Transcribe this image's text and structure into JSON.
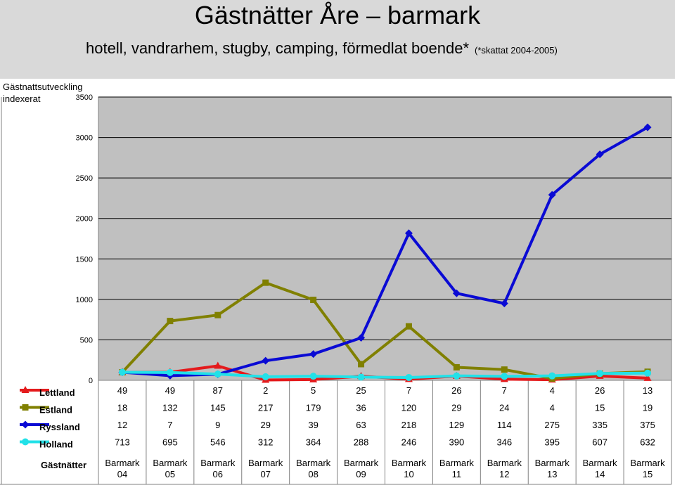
{
  "header": {
    "title": "Gästnätter Åre – barmark",
    "subtitle": "hotell, vandrarhem, stugby, camping, förmedlat boende*",
    "note": "(*skattat 2004-2005)"
  },
  "chart_data": {
    "type": "line",
    "ylabel": "Gästnattsutveckling indexerat",
    "ylim": [
      0,
      3500
    ],
    "yticks": [
      0,
      500,
      1000,
      1500,
      2000,
      2500,
      3000,
      3500
    ],
    "grid": true,
    "table_row_label": "Gästnätter",
    "categories": [
      [
        "Barmark",
        "04"
      ],
      [
        "Barmark",
        "05"
      ],
      [
        "Barmark",
        "06"
      ],
      [
        "Barmark",
        "07"
      ],
      [
        "Barmark",
        "08"
      ],
      [
        "Barmark",
        "09"
      ],
      [
        "Barmark",
        "10"
      ],
      [
        "Barmark",
        "11"
      ],
      [
        "Barmark",
        "12"
      ],
      [
        "Barmark",
        "13"
      ],
      [
        "Barmark",
        "14"
      ],
      [
        "Barmark",
        "15"
      ]
    ],
    "series": [
      {
        "name": "Lettland",
        "color": "#e41a1c",
        "marker": "triangle",
        "table": [
          "49",
          "49",
          "87",
          "2",
          "5",
          "25",
          "7",
          "26",
          "7",
          "4",
          "26",
          "13"
        ],
        "index": [
          100,
          100,
          178,
          4,
          10,
          51,
          14,
          53,
          14,
          8,
          53,
          27
        ]
      },
      {
        "name": "Estland",
        "color": "#808000",
        "marker": "square",
        "table": [
          "18",
          "132",
          "145",
          "217",
          "179",
          "36",
          "120",
          "29",
          "24",
          "4",
          "15",
          "19"
        ],
        "index": [
          100,
          733,
          806,
          1206,
          994,
          200,
          667,
          161,
          133,
          22,
          83,
          106
        ]
      },
      {
        "name": "Ryssland",
        "color": "#0a0ad4",
        "marker": "diamond",
        "table": [
          "12",
          "7",
          "9",
          "29",
          "39",
          "63",
          "218",
          "129",
          "114",
          "275",
          "335",
          "375"
        ],
        "index": [
          100,
          58,
          75,
          242,
          325,
          525,
          1817,
          1075,
          950,
          2292,
          2792,
          3125
        ]
      },
      {
        "name": "Holland",
        "color": "#22e1e8",
        "marker": "circle",
        "table": [
          "713",
          "695",
          "546",
          "312",
          "364",
          "288",
          "246",
          "390",
          "346",
          "395",
          "607",
          "632"
        ],
        "index": [
          100,
          97,
          77,
          44,
          51,
          40,
          35,
          55,
          49,
          55,
          85,
          89
        ]
      }
    ]
  }
}
